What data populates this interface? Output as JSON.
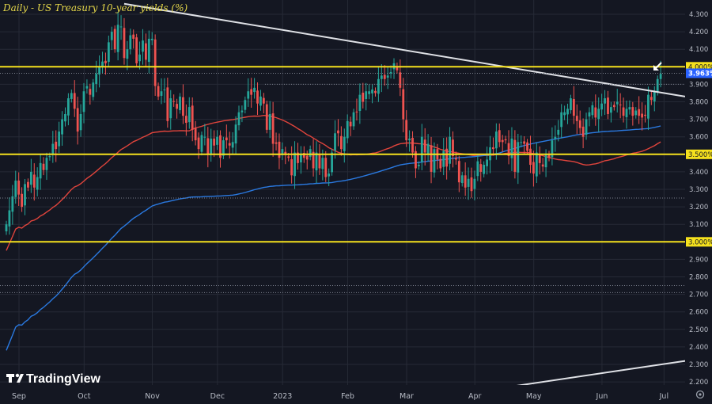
{
  "chart_data": {
    "type": "candlestick",
    "title": "Daily - US Treasury 10-year yields (%)",
    "y_ticks": [
      "4.300",
      "4.200",
      "4.100",
      "3.900",
      "3.800",
      "3.700",
      "3.600",
      "3.500",
      "3.400",
      "3.300",
      "3.200",
      "3.100",
      "2.900",
      "2.800",
      "2.700",
      "2.600",
      "2.500",
      "2.400",
      "2.300",
      "2.200"
    ],
    "ylim": [
      2.15,
      4.35
    ],
    "x_ticks": [
      {
        "label": "Sep",
        "t": 0
      },
      {
        "label": "Oct",
        "t": 21
      },
      {
        "label": "Nov",
        "t": 43
      },
      {
        "label": "Dec",
        "t": 64
      },
      {
        "label": "2023",
        "t": 85
      },
      {
        "label": "Feb",
        "t": 106
      },
      {
        "label": "Mar",
        "t": 125
      },
      {
        "label": "Apr",
        "t": 147
      },
      {
        "label": "May",
        "t": 166
      },
      {
        "label": "Jun",
        "t": 188
      },
      {
        "label": "Jul",
        "t": 208
      }
    ],
    "horizontal_levels": [
      {
        "label": "4.000%",
        "value": 4.0,
        "color": "#f5e11d"
      },
      {
        "label": "3.500%",
        "value": 3.5,
        "color": "#f5e11d"
      },
      {
        "label": "3.000%",
        "value": 3.0,
        "color": "#f5e11d"
      }
    ],
    "current_price": {
      "label": "3.963%",
      "value": 3.963,
      "color": "#2962ff"
    },
    "anchor_price": 3.963,
    "anchor_t": 211,
    "closes": [
      3.1,
      3.18,
      3.26,
      3.35,
      3.27,
      3.2,
      3.33,
      3.31,
      3.4,
      3.31,
      3.37,
      3.45,
      3.41,
      3.48,
      3.49,
      3.56,
      3.53,
      3.63,
      3.7,
      3.73,
      3.82,
      3.85,
      3.76,
      3.63,
      3.73,
      3.86,
      3.89,
      3.84,
      3.91,
      3.96,
      4.0,
      4.03,
      4.02,
      4.14,
      4.2,
      4.1,
      4.24,
      4.23,
      4.05,
      4.1,
      4.18,
      4.16,
      4.02,
      4.07,
      4.15,
      4.04,
      4.16,
      4.16,
      3.89,
      3.83,
      3.86,
      3.87,
      3.69,
      3.82,
      3.8,
      3.76,
      3.83,
      3.72,
      3.68,
      3.77,
      3.64,
      3.58,
      3.53,
      3.61,
      3.6,
      3.5,
      3.59,
      3.55,
      3.6,
      3.48,
      3.58,
      3.58,
      3.55,
      3.57,
      3.67,
      3.74,
      3.75,
      3.81,
      3.86,
      3.84,
      3.88,
      3.79,
      3.83,
      3.79,
      3.64,
      3.73,
      3.56,
      3.56,
      3.48,
      3.53,
      3.5,
      3.48,
      3.38,
      3.51,
      3.45,
      3.5,
      3.48,
      3.47,
      3.53,
      3.42,
      3.51,
      3.42,
      3.48,
      3.37,
      3.39,
      3.51,
      3.62,
      3.62,
      3.53,
      3.6,
      3.69,
      3.66,
      3.74,
      3.74,
      3.84,
      3.8,
      3.86,
      3.86,
      3.87,
      3.85,
      3.93,
      3.95,
      3.93,
      3.95,
      3.97,
      4.02,
      3.98,
      3.88,
      3.7,
      3.58,
      3.59,
      3.51,
      3.42,
      3.44,
      3.6,
      3.51,
      3.56,
      3.4,
      3.53,
      3.47,
      3.42,
      3.52,
      3.43,
      3.6,
      3.49,
      3.47,
      3.34,
      3.38,
      3.31,
      3.36,
      3.29,
      3.36,
      3.46,
      3.4,
      3.44,
      3.47,
      3.54,
      3.53,
      3.63,
      3.57,
      3.57,
      3.58,
      3.49,
      3.59,
      3.4,
      3.57,
      3.57,
      3.56,
      3.52,
      3.44,
      3.39,
      3.51,
      3.45,
      3.43,
      3.5,
      3.48,
      3.58,
      3.6,
      3.64,
      3.74,
      3.74,
      3.76,
      3.82,
      3.72,
      3.69,
      3.65,
      3.6,
      3.7,
      3.74,
      3.78,
      3.71,
      3.76,
      3.79,
      3.82,
      3.73,
      3.77,
      3.77,
      3.8,
      3.78,
      3.72,
      3.76,
      3.77,
      3.72,
      3.75,
      3.72,
      3.71,
      3.72,
      3.84,
      3.81,
      3.86,
      3.93,
      3.96
    ]
  },
  "colors": {
    "background": "#141722",
    "grid": "#262a36",
    "bull": "#26a69a",
    "bear": "#ef5350",
    "ma_blue": "#2a79e0",
    "ma_red": "#e0443c",
    "trendline": "#dfe1e6",
    "level": "#f5e11d"
  },
  "watermark": {
    "brand": "TradingView",
    "icon": "tradingview-logo-icon"
  },
  "settings_icon": "gear-icon",
  "annotation": {
    "icon": "arrow-pointer-icon"
  }
}
